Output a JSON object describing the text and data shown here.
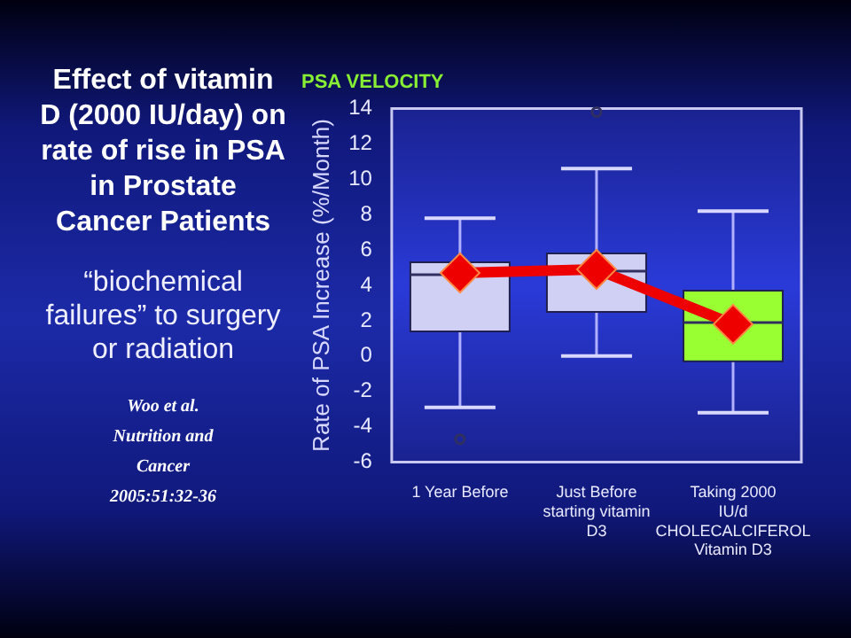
{
  "chart_data": {
    "type": "box",
    "title": "Effect of vitamin D (2000 IU/day) on rate of rise in PSA in Prostate Cancer Patients",
    "subtitle": "PSA VELOCITY",
    "ylabel": "Rate of PSA Increase (%/Month)",
    "annotations": [
      "“biochemical failures” to surgery or radiation",
      "Woo et al. Nutrition and Cancer 2005:51:32-36"
    ],
    "categories": [
      "1 Year Before",
      "Just Before starting vitamin D3",
      "Taking 2000 IU/d CHOLECALCIFEROL Vitamin D3"
    ],
    "series": [
      {
        "type": "box",
        "colors": [
          "#d0d0f4",
          "#d0d0f4",
          "#99ff33"
        ],
        "boxes": [
          {
            "low": -2.9,
            "q1": 1.4,
            "median": 4.6,
            "q3": 5.3,
            "high": 7.8,
            "outliers": [
              -4.7
            ]
          },
          {
            "low": 0,
            "q1": 2.5,
            "median": 4.8,
            "q3": 5.8,
            "high": 10.6,
            "outliers": [
              13.8
            ]
          },
          {
            "low": -3.2,
            "q1": -0.3,
            "median": 1.9,
            "q3": 3.7,
            "high": 8.2
          }
        ]
      },
      {
        "type": "line",
        "color": "#ee0000",
        "values": [
          4.7,
          4.9,
          1.8
        ],
        "marker": "diamond"
      }
    ],
    "ylim": [
      -6,
      14
    ],
    "yticks": [
      -6,
      -4,
      -2,
      0,
      2,
      4,
      6,
      8,
      10,
      12,
      14
    ],
    "grid": false,
    "legend": false
  }
}
